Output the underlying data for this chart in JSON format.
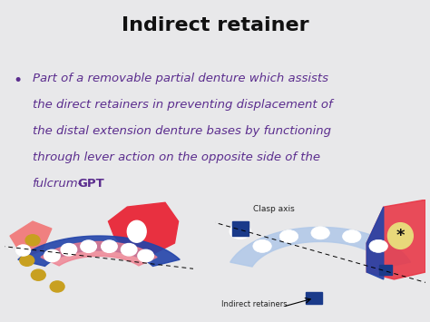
{
  "title": "Indirect retainer",
  "title_fontsize": 16,
  "title_color": "#111111",
  "title_weight": "bold",
  "bullet_lines": [
    "Part of a removable partial denture which assists",
    "the direct retainers in preventing displacement of",
    "the distal extension denture bases by functioning",
    "through lever action on the opposite side of the",
    "fulcrum-"
  ],
  "bullet_bold_suffix": "GPT",
  "bullet_fontsize": 9.5,
  "bullet_color": "#5b2d8e",
  "background_color": "#e8e8ea",
  "right_label_1": "Clasp axis",
  "right_label_2": "Indirect retainers"
}
